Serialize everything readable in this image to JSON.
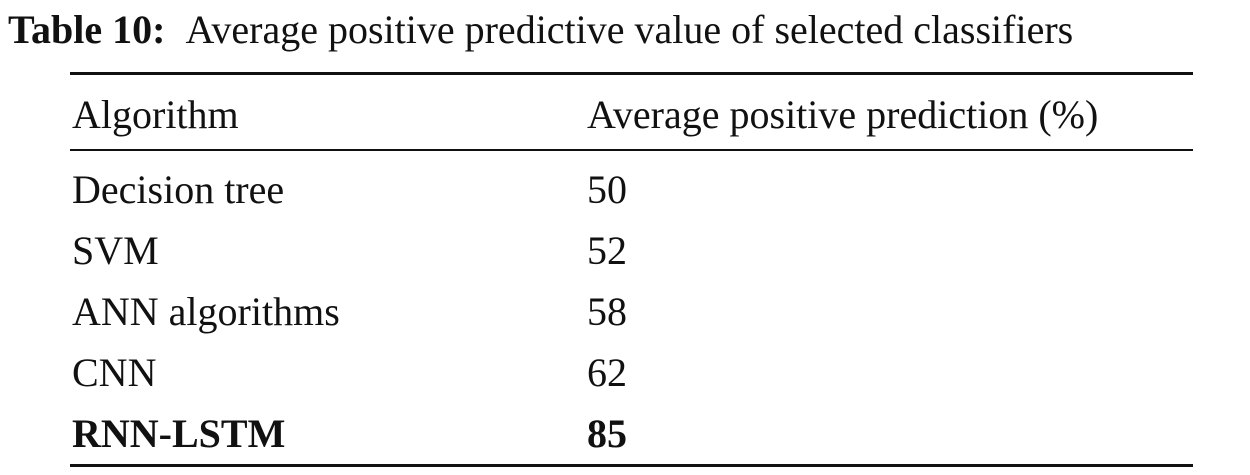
{
  "caption": {
    "label": "Table 10:",
    "text": "Average positive predictive value of selected classifiers"
  },
  "table": {
    "header": [
      "Algorithm",
      "Average positive prediction (%)"
    ],
    "rows": [
      [
        "Decision tree",
        50
      ],
      [
        "SVM",
        52
      ],
      [
        "ANN algorithms",
        58
      ],
      [
        "CNN",
        62
      ],
      [
        "RNN-LSTM",
        85
      ]
    ]
  }
}
